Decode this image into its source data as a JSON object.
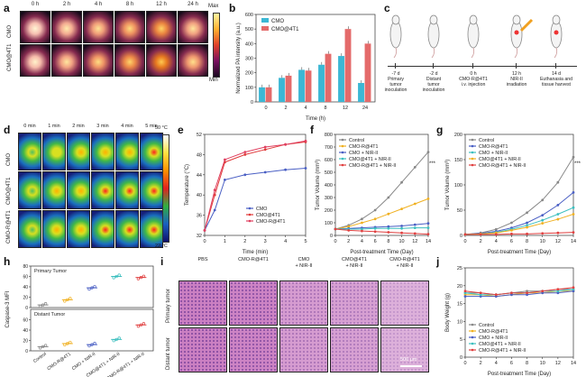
{
  "panels": {
    "a": {
      "letter": "a",
      "times": [
        "0 h",
        "2 h",
        "4 h",
        "8 h",
        "12 h",
        "24 h"
      ],
      "rows": [
        "CMO",
        "CMO@4T1"
      ],
      "cbar_max": "Max",
      "cbar_min": "Min"
    },
    "b": {
      "letter": "b"
    },
    "c": {
      "letter": "c",
      "labels": [
        "-7 d\nPrimary\ntumor\ninoculation",
        "-2 d\nDistant\ntumor\ninoculation",
        "0 h\nCMO-R@4T1\ni.v. injection",
        "12 h\nNIR-II\nirradiation",
        "14 d\nEuthanasia and\ntissue harvest"
      ]
    },
    "d": {
      "letter": "d",
      "times": [
        "0 min",
        "1 min",
        "2 min",
        "3 min",
        "4 min",
        "5 min"
      ],
      "rows": [
        "CMO",
        "CMO@4T1",
        "CMO-R@4T1"
      ],
      "cbar_max": "50 °C",
      "cbar_min": "22 °C"
    },
    "e": {
      "letter": "e"
    },
    "f": {
      "letter": "f"
    },
    "g": {
      "letter": "g"
    },
    "h": {
      "letter": "h"
    },
    "i": {
      "letter": "i",
      "cols": [
        "PBS",
        "CMO-R@4T1",
        "CMO\n+ NIR-II",
        "CMO@4T1\n+ NIR-II",
        "CMO-R@4T1\n+ NIR-II"
      ],
      "rows": [
        "Primary tumor",
        "Distant tumor"
      ],
      "scale": "500 μm"
    },
    "j": {
      "letter": "j"
    }
  },
  "chart_data": [
    {
      "id": "b",
      "type": "bar",
      "title": "",
      "xlabel": "Time (h)",
      "ylabel": "Normalized PA intensity (a.u.)",
      "categories": [
        "0",
        "2",
        "4",
        "8",
        "12",
        "24"
      ],
      "ylim": [
        0,
        600
      ],
      "yticks": [
        0,
        100,
        200,
        300,
        400,
        500,
        600
      ],
      "legend": [
        "CMO",
        "CMO@4T1"
      ],
      "series": [
        {
          "name": "CMO",
          "color": "#3cb7d4",
          "values": [
            100,
            165,
            220,
            255,
            315,
            130
          ]
        },
        {
          "name": "CMO@4T1",
          "color": "#e46a6a",
          "values": [
            100,
            180,
            215,
            330,
            500,
            400
          ]
        }
      ]
    },
    {
      "id": "e",
      "type": "line",
      "xlabel": "Time (min)",
      "ylabel": "Temperature (°C)",
      "xlim": [
        0,
        5
      ],
      "ylim": [
        32,
        52
      ],
      "xticks": [
        0,
        1,
        2,
        3,
        4,
        5
      ],
      "yticks": [
        32,
        36,
        40,
        44,
        48,
        52
      ],
      "legend": [
        "CMO",
        "CMO@4T1",
        "CMO-R@4T1"
      ],
      "x": [
        0,
        0.5,
        1,
        2,
        3,
        4,
        5
      ],
      "series": [
        {
          "name": "CMO",
          "color": "#4a5fc4",
          "marker": "square",
          "values": [
            33,
            37,
            43,
            44,
            44.5,
            45,
            45.3
          ]
        },
        {
          "name": "CMO@4T1",
          "color": "#e03a3a",
          "marker": "circle",
          "values": [
            33,
            40,
            46.5,
            48,
            49,
            50,
            50.5
          ]
        },
        {
          "name": "CMO-R@4T1",
          "color": "#e04060",
          "marker": "triangle",
          "values": [
            33,
            41,
            47,
            48.5,
            49.5,
            50,
            50.7
          ]
        }
      ]
    },
    {
      "id": "f",
      "type": "line",
      "xlabel": "Post-treatment Time (Day)",
      "ylabel": "Tumor Volume (mm³)",
      "xlim": [
        0,
        14
      ],
      "ylim": [
        0,
        800
      ],
      "xticks": [
        0,
        2,
        4,
        6,
        8,
        10,
        12,
        14
      ],
      "yticks": [
        0,
        100,
        200,
        300,
        400,
        500,
        600,
        700,
        800
      ],
      "legend": [
        "Control",
        "CMO-R@4T1",
        "CMO + NIR-II",
        "CMO@4T1 + NIR-II",
        "CMO-R@4T1 + NIR-II"
      ],
      "x": [
        0,
        2,
        4,
        6,
        8,
        10,
        12,
        14
      ],
      "annotation": "***",
      "series": [
        {
          "name": "Control",
          "color": "#888888",
          "values": [
            50,
            80,
            130,
            200,
            300,
            420,
            540,
            660
          ]
        },
        {
          "name": "CMO-R@4T1",
          "color": "#f0b020",
          "values": [
            50,
            70,
            100,
            130,
            170,
            210,
            250,
            290
          ]
        },
        {
          "name": "CMO + NIR-II",
          "color": "#4a5fc4",
          "values": [
            50,
            55,
            60,
            65,
            70,
            75,
            85,
            95
          ]
        },
        {
          "name": "CMO@4T1 + NIR-II",
          "color": "#3cbfbf",
          "values": [
            50,
            50,
            50,
            55,
            55,
            55,
            60,
            60
          ]
        },
        {
          "name": "CMO-R@4T1 + NIR-II",
          "color": "#e04040",
          "values": [
            50,
            40,
            35,
            30,
            25,
            20,
            15,
            10
          ]
        }
      ]
    },
    {
      "id": "g",
      "type": "line",
      "xlabel": "Post-treatment Time (Day)",
      "ylabel": "Tumor Volume (mm³)",
      "xlim": [
        0,
        14
      ],
      "ylim": [
        0,
        200
      ],
      "xticks": [
        0,
        2,
        4,
        6,
        8,
        10,
        12,
        14
      ],
      "yticks": [
        0,
        50,
        100,
        150,
        200
      ],
      "legend": [
        "Control",
        "CMO-R@4T1",
        "CMO + NIR-II",
        "CMO@4T1 + NIR-II",
        "CMO-R@4T1 + NIR-II"
      ],
      "x": [
        0,
        2,
        4,
        6,
        8,
        10,
        12,
        14
      ],
      "annotation": "***",
      "series": [
        {
          "name": "Control",
          "color": "#888888",
          "values": [
            2,
            5,
            12,
            25,
            45,
            70,
            105,
            155
          ]
        },
        {
          "name": "CMO-R@4T1",
          "color": "#4a5fc4",
          "values": [
            2,
            4,
            8,
            15,
            25,
            40,
            60,
            85
          ]
        },
        {
          "name": "CMO + NIR-II",
          "color": "#3cbfbf",
          "values": [
            2,
            3,
            6,
            12,
            20,
            30,
            42,
            55
          ]
        },
        {
          "name": "CMO@4T1 + NIR-II",
          "color": "#f0b020",
          "values": [
            2,
            3,
            5,
            10,
            16,
            24,
            32,
            42
          ]
        },
        {
          "name": "CMO-R@4T1 + NIR-II",
          "color": "#e04040",
          "values": [
            2,
            2,
            2,
            3,
            3,
            4,
            5,
            6
          ]
        }
      ]
    },
    {
      "id": "h",
      "type": "scatter",
      "ylabel": "Caspase-3 MFI",
      "categories": [
        "Control",
        "CMO-R@4T1",
        "CMO + NIR-II",
        "CMO@4T1 + NIR-II",
        "CMO-R@4T1 + NIR-II"
      ],
      "groups": [
        {
          "name": "Primary Tumor",
          "ylim": [
            0,
            80
          ],
          "yticks": [
            0,
            20,
            40,
            60,
            80
          ],
          "means": [
            5,
            15,
            38,
            60,
            58
          ]
        },
        {
          "name": "Distant Tumor",
          "ylim": [
            0,
            80
          ],
          "yticks": [
            0,
            20,
            40,
            60
          ],
          "means": [
            8,
            14,
            12,
            22,
            50
          ]
        }
      ],
      "colors": [
        "#888888",
        "#f0b020",
        "#4a5fc4",
        "#3cbfbf",
        "#e04040"
      ]
    },
    {
      "id": "j",
      "type": "line",
      "xlabel": "Post-treatment Time (Day)",
      "ylabel": "Body Weight (g)",
      "xlim": [
        0,
        14
      ],
      "ylim": [
        0,
        25
      ],
      "xticks": [
        0,
        2,
        4,
        6,
        8,
        10,
        12,
        14
      ],
      "yticks": [
        0,
        5,
        10,
        15,
        20,
        25
      ],
      "legend": [
        "Control",
        "CMO-R@4T1",
        "CMO + NIR-II",
        "CMO@4T1 + NIR-II",
        "CMO-R@4T1 + NIR-II"
      ],
      "x": [
        0,
        2,
        4,
        6,
        8,
        10,
        12,
        14
      ],
      "series": [
        {
          "name": "Control",
          "color": "#888888",
          "values": [
            18,
            18,
            17.5,
            18,
            18.5,
            18.5,
            19,
            19
          ]
        },
        {
          "name": "CMO-R@4T1",
          "color": "#f0b020",
          "values": [
            17.5,
            17.5,
            17,
            17.5,
            18,
            18,
            18.5,
            18.5
          ]
        },
        {
          "name": "CMO + NIR-II",
          "color": "#4a5fc4",
          "values": [
            17,
            17,
            17,
            17.5,
            17.5,
            18,
            18,
            18.5
          ]
        },
        {
          "name": "CMO@4T1 + NIR-II",
          "color": "#3cbfbf",
          "values": [
            18,
            17.5,
            17.5,
            18,
            18,
            18.5,
            18.5,
            19
          ]
        },
        {
          "name": "CMO-R@4T1 + NIR-II",
          "color": "#e04040",
          "values": [
            18.5,
            18,
            17.5,
            18,
            18,
            18.5,
            19,
            19.5
          ]
        }
      ]
    }
  ]
}
